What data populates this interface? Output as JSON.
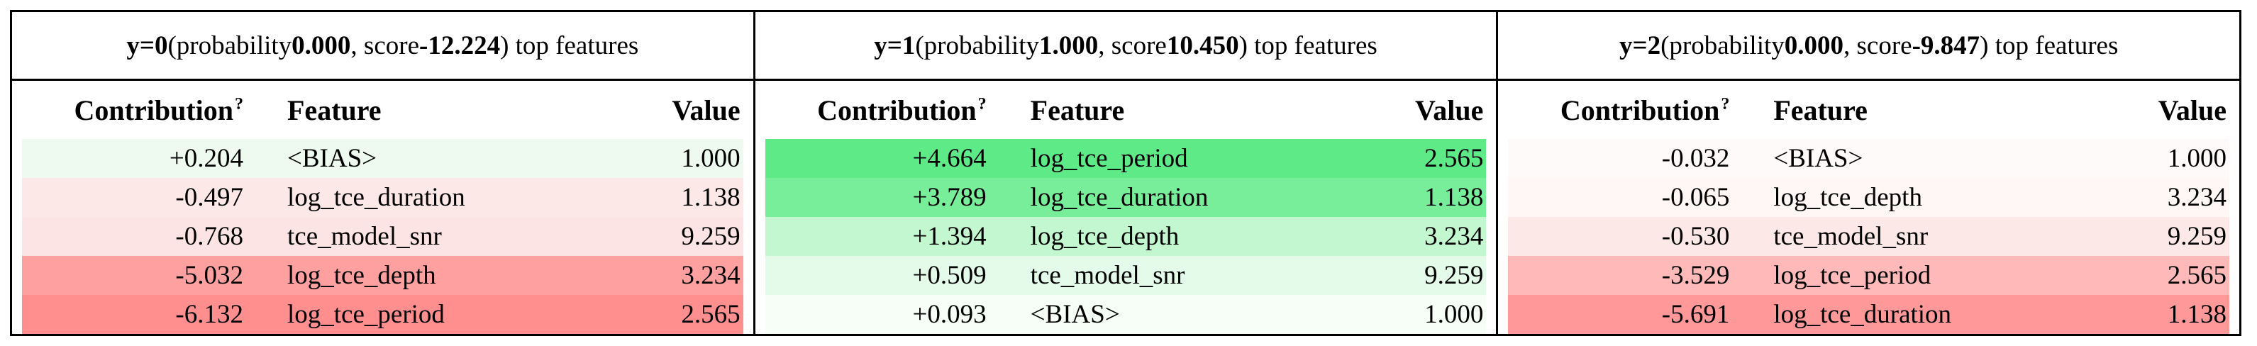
{
  "headers": {
    "contribution": "Contribution",
    "help_mark": "?",
    "feature": "Feature",
    "value": "Value"
  },
  "panels": [
    {
      "y_label": "y=0",
      "prob_prefix": " (probability ",
      "probability": "0.000",
      "score_prefix": ", score ",
      "score": "-12.224",
      "suffix": ") top features",
      "rows": [
        {
          "contribution": "+0.204",
          "feature": "<BIAS>",
          "value": "1.000",
          "bg": "#eefaf0"
        },
        {
          "contribution": "-0.497",
          "feature": "log_tce_duration",
          "value": "1.138",
          "bg": "#fde8e8"
        },
        {
          "contribution": "-0.768",
          "feature": "tce_model_snr",
          "value": "9.259",
          "bg": "#fde4e4"
        },
        {
          "contribution": "-5.032",
          "feature": "log_tce_depth",
          "value": "3.234",
          "bg": "#ffa0a0"
        },
        {
          "contribution": "-6.132",
          "feature": "log_tce_period",
          "value": "2.565",
          "bg": "#ff8f8f"
        }
      ]
    },
    {
      "y_label": "y=1",
      "prob_prefix": " (probability ",
      "probability": "1.000",
      "score_prefix": ", score ",
      "score": "10.450",
      "suffix": ") top features",
      "rows": [
        {
          "contribution": "+4.664",
          "feature": "log_tce_period",
          "value": "2.565",
          "bg": "#5eea87"
        },
        {
          "contribution": "+3.789",
          "feature": "log_tce_duration",
          "value": "1.138",
          "bg": "#78ee9a"
        },
        {
          "contribution": "+1.394",
          "feature": "log_tce_depth",
          "value": "3.234",
          "bg": "#c2f7cf"
        },
        {
          "contribution": "+0.509",
          "feature": "tce_model_snr",
          "value": "9.259",
          "bg": "#e3fbe8"
        },
        {
          "contribution": "+0.093",
          "feature": "<BIAS>",
          "value": "1.000",
          "bg": "#f7fef8"
        }
      ]
    },
    {
      "y_label": "y=2",
      "prob_prefix": " (probability ",
      "probability": "0.000",
      "score_prefix": ", score ",
      "score": "-9.847",
      "suffix": ") top features",
      "rows": [
        {
          "contribution": "-0.032",
          "feature": "<BIAS>",
          "value": "1.000",
          "bg": "#fffafa"
        },
        {
          "contribution": "-0.065",
          "feature": "log_tce_depth",
          "value": "3.234",
          "bg": "#fff6f6"
        },
        {
          "contribution": "-0.530",
          "feature": "tce_model_snr",
          "value": "9.259",
          "bg": "#fde8e8"
        },
        {
          "contribution": "-3.529",
          "feature": "log_tce_period",
          "value": "2.565",
          "bg": "#ffb9b9"
        },
        {
          "contribution": "-5.691",
          "feature": "log_tce_duration",
          "value": "1.138",
          "bg": "#ff9999"
        }
      ]
    }
  ]
}
